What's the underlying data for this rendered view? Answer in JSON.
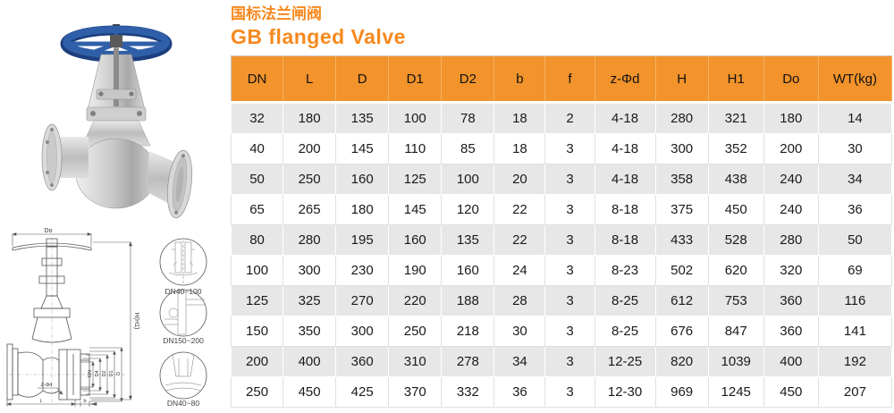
{
  "colors": {
    "accent": "#F6891E",
    "table_header_bg": "#F2932B",
    "row_alt_bg": "#E7E7E7",
    "handwheel_blue": "#2F5FA8"
  },
  "header": {
    "title_zh": "国标法兰闸阀",
    "title_en": "GB flanged Valve"
  },
  "drawing": {
    "dims": {
      "top": "Do",
      "right": "H(H1)",
      "verticals": [
        "DN",
        "D4",
        "D2",
        "D1",
        "D"
      ],
      "bolt": "Z-Φd",
      "length": "L",
      "flange_thickness": "b"
    },
    "details": [
      "DN40~100",
      "DN150~200",
      "DN40~80"
    ]
  },
  "table": {
    "columns": [
      "DN",
      "L",
      "D",
      "D1",
      "D2",
      "b",
      "f",
      "z-Φd",
      "H",
      "H1",
      "Do",
      "WT(kg)"
    ],
    "rows": [
      [
        "32",
        "180",
        "135",
        "100",
        "78",
        "18",
        "2",
        "4-18",
        "280",
        "321",
        "180",
        "14"
      ],
      [
        "40",
        "200",
        "145",
        "110",
        "85",
        "18",
        "3",
        "4-18",
        "300",
        "352",
        "200",
        "30"
      ],
      [
        "50",
        "250",
        "160",
        "125",
        "100",
        "20",
        "3",
        "4-18",
        "358",
        "438",
        "240",
        "34"
      ],
      [
        "65",
        "265",
        "180",
        "145",
        "120",
        "22",
        "3",
        "8-18",
        "375",
        "450",
        "240",
        "36"
      ],
      [
        "80",
        "280",
        "195",
        "160",
        "135",
        "22",
        "3",
        "8-18",
        "433",
        "528",
        "280",
        "50"
      ],
      [
        "100",
        "300",
        "230",
        "190",
        "160",
        "24",
        "3",
        "8-23",
        "502",
        "620",
        "320",
        "69"
      ],
      [
        "125",
        "325",
        "270",
        "220",
        "188",
        "28",
        "3",
        "8-25",
        "612",
        "753",
        "360",
        "116"
      ],
      [
        "150",
        "350",
        "300",
        "250",
        "218",
        "30",
        "3",
        "8-25",
        "676",
        "847",
        "360",
        "141"
      ],
      [
        "200",
        "400",
        "360",
        "310",
        "278",
        "34",
        "3",
        "12-25",
        "820",
        "1039",
        "400",
        "192"
      ],
      [
        "250",
        "450",
        "425",
        "370",
        "332",
        "36",
        "3",
        "12-30",
        "969",
        "1245",
        "450",
        "207"
      ]
    ]
  }
}
